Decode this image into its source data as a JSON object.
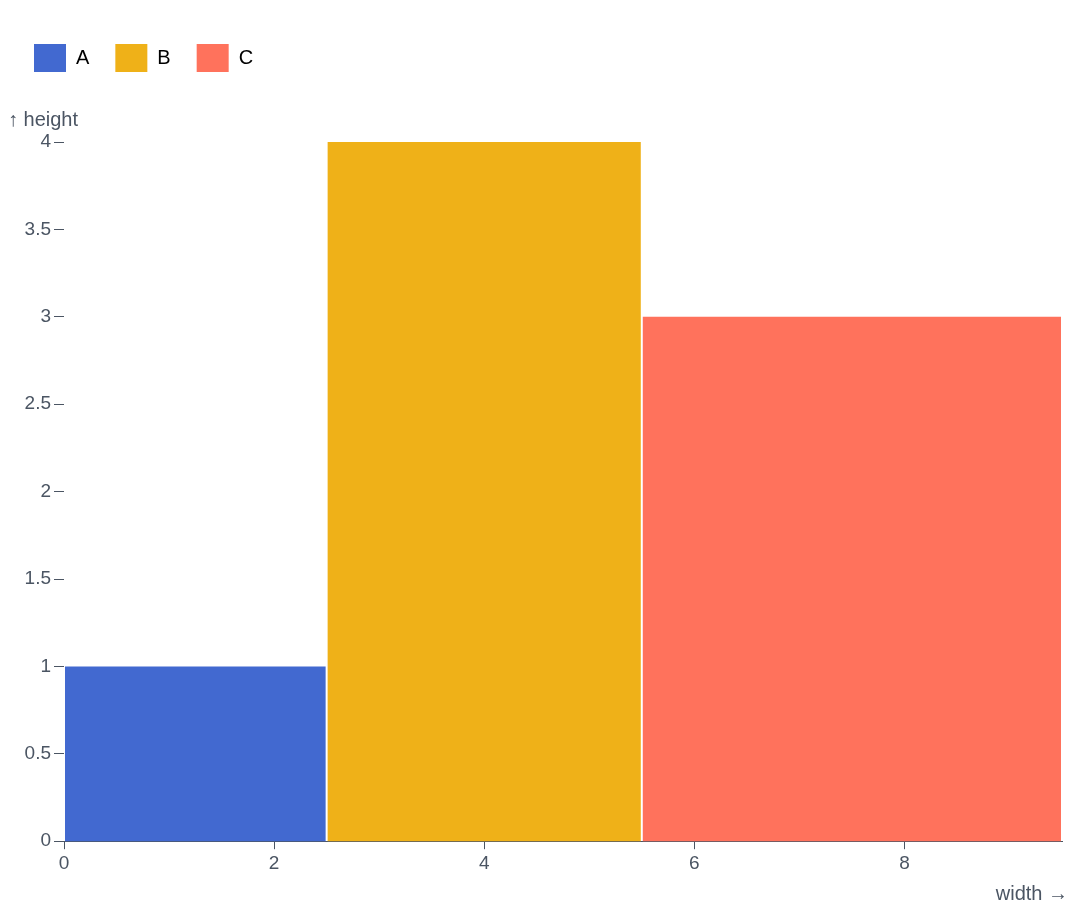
{
  "chart_data": {
    "type": "histogram",
    "xlabel": "width →",
    "ylabel": "↑ height",
    "bins": [
      0,
      2.5,
      5.5,
      9.5
    ],
    "series": [
      {
        "name": "A",
        "color": "#4269d0",
        "values": [
          1,
          null,
          null
        ]
      },
      {
        "name": "B",
        "color": "#efb118",
        "values": [
          null,
          4,
          null
        ]
      },
      {
        "name": "C",
        "color": "#ff725c",
        "values": [
          null,
          null,
          3
        ]
      }
    ],
    "xlim": [
      0,
      9.5
    ],
    "xticks": [
      0,
      2,
      4,
      6,
      8
    ],
    "ylim": [
      0,
      4
    ],
    "yticks": [
      0,
      0.5,
      1,
      1.5,
      2,
      2.5,
      3,
      3.5,
      4
    ],
    "legend": "top left",
    "grid": false
  }
}
